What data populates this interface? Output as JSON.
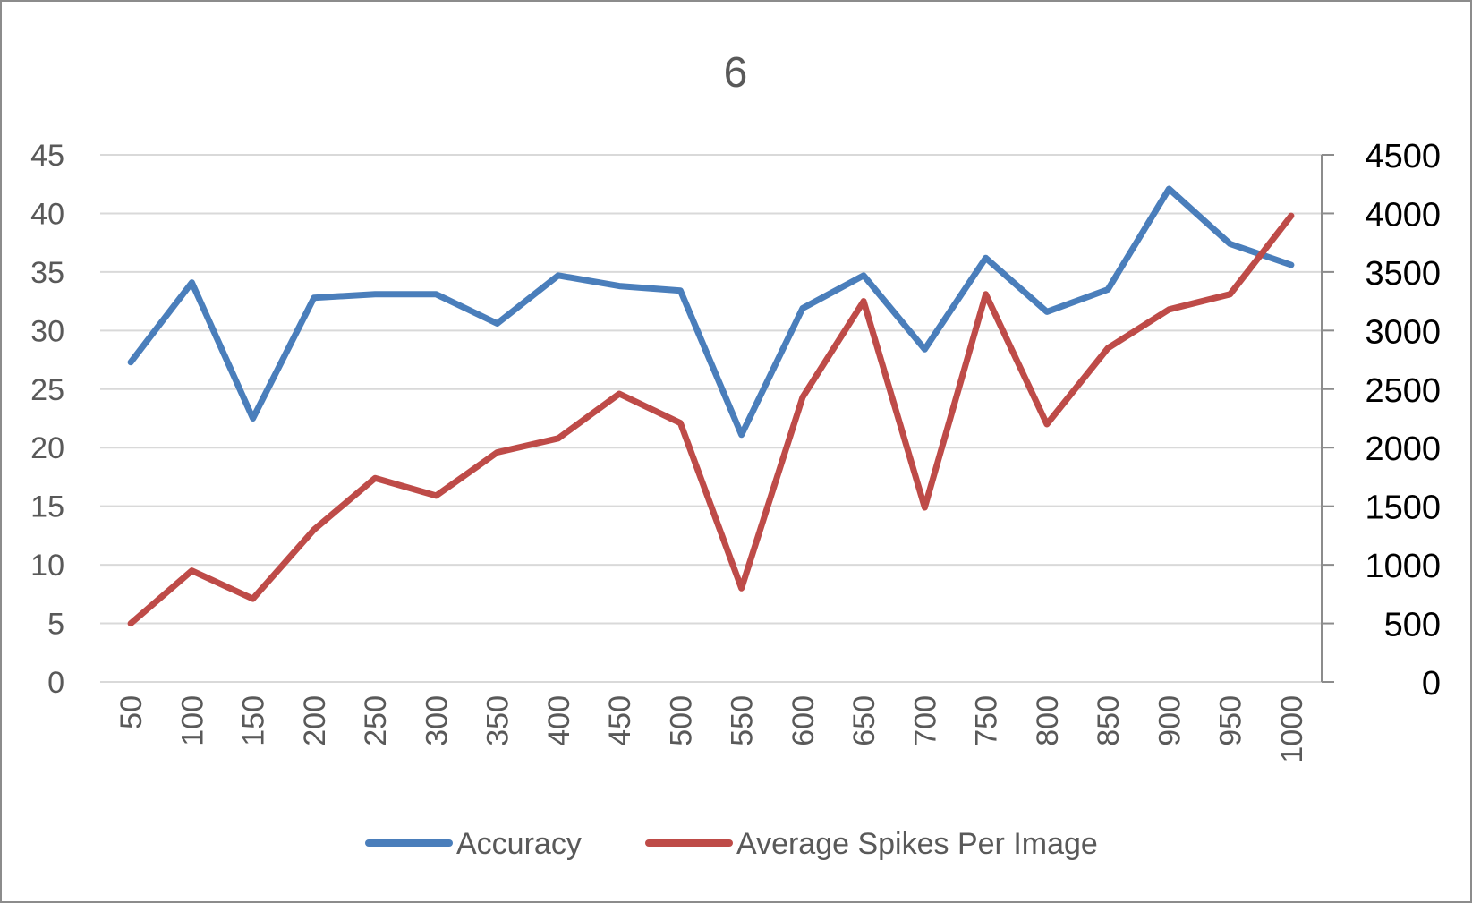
{
  "chart_data": {
    "type": "line",
    "title": "6",
    "x": [
      50,
      100,
      150,
      200,
      250,
      300,
      350,
      400,
      450,
      500,
      550,
      600,
      650,
      700,
      750,
      800,
      850,
      900,
      950,
      1000
    ],
    "y_left": {
      "min": 0,
      "max": 45,
      "ticks": [
        "0",
        "5",
        "10",
        "15",
        "20",
        "25",
        "30",
        "35",
        "40",
        "45"
      ]
    },
    "y_right": {
      "min": 0,
      "max": 4500,
      "ticks": [
        "0",
        "500",
        "1000",
        "1500",
        "2000",
        "2500",
        "3000",
        "3500",
        "4000",
        "4500"
      ]
    },
    "grid": true,
    "legend_position": "bottom",
    "series": [
      {
        "name": "Accuracy",
        "axis": "left",
        "color": "#4a7ebb",
        "values": [
          27.3,
          34.1,
          22.5,
          32.8,
          33.1,
          33.1,
          30.6,
          34.7,
          33.8,
          33.4,
          21.1,
          31.9,
          34.7,
          28.4,
          36.2,
          31.6,
          33.5,
          42.1,
          37.4,
          35.6
        ]
      },
      {
        "name": "Average Spikes Per Image",
        "axis": "right",
        "color": "#be4b48",
        "values": [
          500,
          950,
          710,
          1300,
          1740,
          1590,
          1960,
          2080,
          2460,
          2210,
          800,
          2430,
          3250,
          1490,
          3310,
          2200,
          2850,
          3180,
          3310,
          3980
        ]
      }
    ]
  }
}
